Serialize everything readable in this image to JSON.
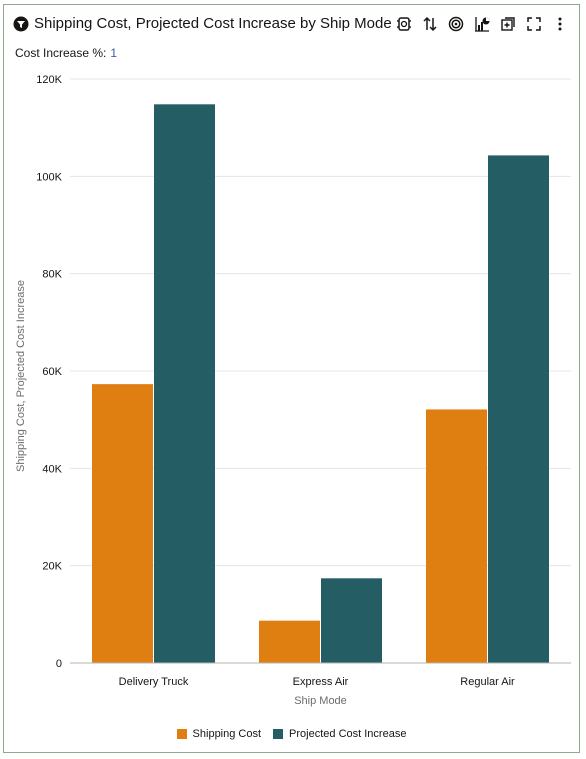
{
  "header": {
    "title": "Shipping Cost, Projected Cost Increase by Ship Mode",
    "toolbar_icons": [
      "refresh-icon",
      "sort-icon",
      "target-icon",
      "chart-type-icon",
      "add-icon",
      "fullscreen-icon",
      "more-icon"
    ]
  },
  "parameter": {
    "label": "Cost Increase %:",
    "value": "1"
  },
  "colors": {
    "shipping_cost": "#df7f11",
    "projected": "#245e64",
    "gridline": "#e5e5e5",
    "axis": "#b5b3b1"
  },
  "chart_data": {
    "type": "bar",
    "categories": [
      "Delivery Truck",
      "Express Air",
      "Regular Air"
    ],
    "series": [
      {
        "name": "Shipping Cost",
        "values": [
          57300,
          8700,
          52100
        ]
      },
      {
        "name": "Projected Cost Increase",
        "values": [
          114800,
          17400,
          104300
        ]
      }
    ],
    "xlabel": "Ship Mode",
    "ylabel": "Shipping Cost, Projected Cost Increase",
    "ylim": [
      0,
      120000
    ],
    "yticks": [
      0,
      20000,
      40000,
      60000,
      80000,
      100000,
      120000
    ],
    "ytick_labels": [
      "0",
      "20K",
      "40K",
      "60K",
      "80K",
      "100K",
      "120K"
    ],
    "grid": true,
    "legend_position": "bottom"
  }
}
